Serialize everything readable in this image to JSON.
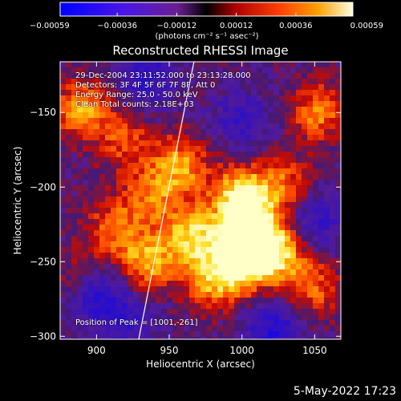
{
  "chart_data": {
    "type": "heatmap",
    "title": "Reconstructed RHESSI Image",
    "xlabel": "Heliocentric X (arcsec)",
    "ylabel": "Heliocentric Y (arcsec)",
    "xlim": [
      875,
      1068
    ],
    "ylim": [
      -302,
      -116
    ],
    "xticks": [
      900,
      950,
      1000,
      1050
    ],
    "xtick_labels": [
      "900",
      "950",
      "1000",
      "1050"
    ],
    "yticks": [
      -150,
      -200,
      -250,
      -300
    ],
    "ytick_labels": [
      "−150",
      "−200",
      "−250",
      "−300"
    ],
    "colorbar": {
      "range": [
        -0.00059,
        0.00059
      ],
      "ticks": [
        -0.00059,
        -0.00036,
        -0.00012,
        0.00012,
        0.00036,
        0.00059
      ],
      "tick_labels": [
        "−0.00059",
        "−0.00036",
        "−0.00012",
        "0.00012",
        "0.00036",
        "0.00059"
      ],
      "unit_label": "(photons cm⁻² s⁻¹ asec⁻²)"
    },
    "limb_line": [
      [
        929,
        -302
      ],
      [
        967,
        -116
      ]
    ],
    "peak": [
      1001,
      -261
    ],
    "bright_sources": [
      {
        "x": 1003,
        "y": -228,
        "v": 0.00059
      },
      {
        "x": 1002,
        "y": -250,
        "v": 0.00055
      },
      {
        "x": 1000,
        "y": -205,
        "v": 0.0005
      },
      {
        "x": 1025,
        "y": -243,
        "v": 0.00045
      },
      {
        "x": 965,
        "y": -232,
        "v": 0.00045
      },
      {
        "x": 980,
        "y": -262,
        "v": 0.0004
      },
      {
        "x": 935,
        "y": -250,
        "v": 0.0004
      },
      {
        "x": 958,
        "y": -185,
        "v": 0.00038
      },
      {
        "x": 890,
        "y": -148,
        "v": 0.0004
      },
      {
        "x": 1052,
        "y": -150,
        "v": 0.00035
      },
      {
        "x": 1048,
        "y": -268,
        "v": 0.0003
      },
      {
        "x": 912,
        "y": -228,
        "v": 0.0003
      },
      {
        "x": 938,
        "y": -205,
        "v": 0.0003
      },
      {
        "x": 1030,
        "y": -200,
        "v": 0.0003
      },
      {
        "x": 890,
        "y": -262,
        "v": 0.00025
      },
      {
        "x": 920,
        "y": -170,
        "v": 0.00025
      }
    ],
    "negative_sources": [
      {
        "x": 898,
        "y": -270,
        "v": -0.0004
      },
      {
        "x": 1022,
        "y": -295,
        "v": -0.00035
      },
      {
        "x": 935,
        "y": -125,
        "v": -0.0003
      },
      {
        "x": 1050,
        "y": -222,
        "v": -0.0003
      },
      {
        "x": 1000,
        "y": -155,
        "v": -0.00025
      },
      {
        "x": 920,
        "y": -290,
        "v": -0.00025
      }
    ]
  },
  "info_lines": [
    "29-Dec-2004 23:11:52.000 to 23:13:28.000",
    "Detectors: 3F 4F 5F 6F 7F 8F, Att 0",
    "Energy Range: 25.0 - 50.0 keV",
    "Clean      Total counts: 2.18E+03"
  ],
  "peak_label": "Position of Peak = [1001,-261]",
  "plot_date": "5-May-2022 17:23"
}
